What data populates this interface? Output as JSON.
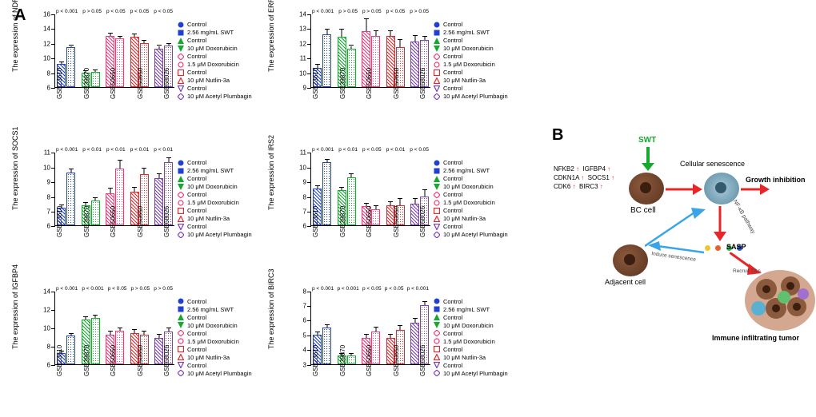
{
  "panel_labels": {
    "a": "A",
    "b": "B"
  },
  "datasets": [
    "GSE23610",
    "GSE39870",
    "GSE50650",
    "GSE50650",
    "GSE68026"
  ],
  "legend": [
    {
      "label": "Control",
      "shape": "circle",
      "color": "#2040d0"
    },
    {
      "label": "2.56 mg/mL SWT",
      "shape": "square",
      "color": "#2040d0"
    },
    {
      "label": "Control",
      "shape": "triangle-up",
      "color": "#17a82f"
    },
    {
      "label": "10 μM Doxorubicin",
      "shape": "triangle-down",
      "color": "#17a82f"
    },
    {
      "label": "Control",
      "shape": "diamond-open",
      "color": "#ec3a7b"
    },
    {
      "label": "1.5 μM Doxorubicin",
      "shape": "circle-open",
      "color": "#ec3a7b"
    },
    {
      "label": "Control",
      "shape": "square-open",
      "color": "#e8262a"
    },
    {
      "label": "10 μM Nutlin-3a",
      "shape": "triangle-up-open",
      "color": "#e8262a"
    },
    {
      "label": "Control",
      "shape": "triangle-down-open",
      "color": "#7a3fb5"
    },
    {
      "label": "10 μM Acetyl Plumbagin",
      "shape": "diamond-open",
      "color": "#7a3fb5"
    }
  ],
  "charts": [
    {
      "gene": "NDRG1",
      "ylabel": "The expression of NDRG1",
      "ymin": 6,
      "ymax": 16,
      "yticks": [
        6,
        8,
        10,
        12,
        14,
        16
      ],
      "pvalues": [
        "p < 0.001",
        "p > 0.05",
        "p < 0.05",
        "p < 0.05",
        "p < 0.05"
      ],
      "groups": [
        [
          9.2,
          11.4
        ],
        [
          8.0,
          8.1
        ],
        [
          13.0,
          12.6
        ],
        [
          12.9,
          12.0
        ],
        [
          11.2,
          11.6
        ]
      ],
      "err": [
        [
          0.2,
          0.2
        ],
        [
          0.2,
          0.2
        ],
        [
          0.3,
          0.3
        ],
        [
          0.3,
          0.3
        ],
        [
          0.4,
          0.3
        ]
      ]
    },
    {
      "gene": "ERRFI1",
      "ylabel": "The expression of ERRFI1",
      "ymin": 9,
      "ymax": 14,
      "yticks": [
        9,
        10,
        11,
        12,
        13,
        14
      ],
      "pvalues": [
        "p < 0.001",
        "p > 0.05",
        "p > 0.05",
        "p < 0.05",
        "p > 0.05"
      ],
      "groups": [
        [
          10.3,
          12.6
        ],
        [
          12.4,
          11.6
        ],
        [
          12.8,
          12.5
        ],
        [
          12.5,
          11.7
        ],
        [
          12.1,
          12.2
        ]
      ],
      "err": [
        [
          0.2,
          0.3
        ],
        [
          0.5,
          0.2
        ],
        [
          0.8,
          0.3
        ],
        [
          0.3,
          0.5
        ],
        [
          0.4,
          0.2
        ]
      ]
    },
    {
      "gene": "SOCS1",
      "ylabel": "The expression of SOCS1",
      "ymin": 6,
      "ymax": 11,
      "yticks": [
        6,
        7,
        8,
        9,
        10,
        11
      ],
      "pvalues": [
        "p < 0.001",
        "p < 0.01",
        "p < 0.01",
        "p < 0.01",
        "p < 0.01"
      ],
      "groups": [
        [
          7.2,
          9.6
        ],
        [
          7.4,
          7.7
        ],
        [
          8.2,
          9.9
        ],
        [
          8.3,
          9.5
        ],
        [
          9.2,
          10.3
        ]
      ],
      "err": [
        [
          0.2,
          0.2
        ],
        [
          0.15,
          0.15
        ],
        [
          0.3,
          0.5
        ],
        [
          0.3,
          0.4
        ],
        [
          0.3,
          0.3
        ]
      ]
    },
    {
      "gene": "IRS2",
      "ylabel": "The expression of IRS2",
      "ymin": 6,
      "ymax": 11,
      "yticks": [
        6,
        7,
        8,
        9,
        10,
        11
      ],
      "pvalues": [
        "p < 0.001",
        "p < 0.01",
        "p < 0.05",
        "p < 0.01",
        "p < 0.05"
      ],
      "groups": [
        [
          8.5,
          10.3
        ],
        [
          8.4,
          9.3
        ],
        [
          7.3,
          7.1
        ],
        [
          7.4,
          7.4
        ],
        [
          7.5,
          8.0
        ]
      ],
      "err": [
        [
          0.2,
          0.2
        ],
        [
          0.2,
          0.2
        ],
        [
          0.2,
          0.2
        ],
        [
          0.2,
          0.4
        ],
        [
          0.3,
          0.4
        ]
      ]
    },
    {
      "gene": "IGFBP4",
      "ylabel": "The expression of IGFBP4",
      "ymin": 6,
      "ymax": 14,
      "yticks": [
        6,
        8,
        10,
        12,
        14
      ],
      "pvalues": [
        "p < 0.001",
        "p < 0.001",
        "p < 0.05",
        "p > 0.05",
        "p > 0.05"
      ],
      "groups": [
        [
          7.2,
          9.1
        ],
        [
          10.8,
          11.0
        ],
        [
          9.2,
          9.6
        ],
        [
          9.4,
          9.2
        ],
        [
          8.8,
          9.5
        ]
      ],
      "err": [
        [
          0.2,
          0.2
        ],
        [
          0.3,
          0.3
        ],
        [
          0.3,
          0.3
        ],
        [
          0.3,
          0.3
        ],
        [
          0.4,
          0.4
        ]
      ]
    },
    {
      "gene": "BIRC3",
      "ylabel": "The expression of BIRC3",
      "ymin": 3,
      "ymax": 8,
      "yticks": [
        3,
        4,
        5,
        6,
        7,
        8
      ],
      "pvalues": [
        "p < 0.001",
        "p < 0.001",
        "p < 0.05",
        "p < 0.05",
        "p < 0.001"
      ],
      "groups": [
        [
          5.0,
          5.5
        ],
        [
          3.6,
          3.6
        ],
        [
          4.8,
          5.2
        ],
        [
          4.8,
          5.3
        ],
        [
          5.8,
          7.0
        ]
      ],
      "err": [
        [
          0.15,
          0.15
        ],
        [
          0.1,
          0.1
        ],
        [
          0.2,
          0.3
        ],
        [
          0.2,
          0.3
        ],
        [
          0.3,
          0.2
        ]
      ]
    }
  ],
  "colors": {
    "sets": [
      "#2040d0",
      "#17a82f",
      "#ec3a7b",
      "#e8262a",
      "#7a3fb5"
    ]
  },
  "diagram": {
    "swt": "SWT",
    "genes_up": [
      "NFKB2",
      "IGFBP4",
      "CDKN1A",
      "SOCS1",
      "CDK6",
      "BIRC3"
    ],
    "up_symbol": "↑",
    "bc_cell": "BC cell",
    "cellular_senescence": "Cellular senescence",
    "growth_inhibition": "Growth inhibition",
    "adjacent_cell": "Adjacent cell",
    "sasp": "SASP",
    "induce": "Induce senescence",
    "nfkb": "NF-κB pathway",
    "recruit": "Recruit TILs",
    "tumor": "Immune infiltrating tumor"
  }
}
